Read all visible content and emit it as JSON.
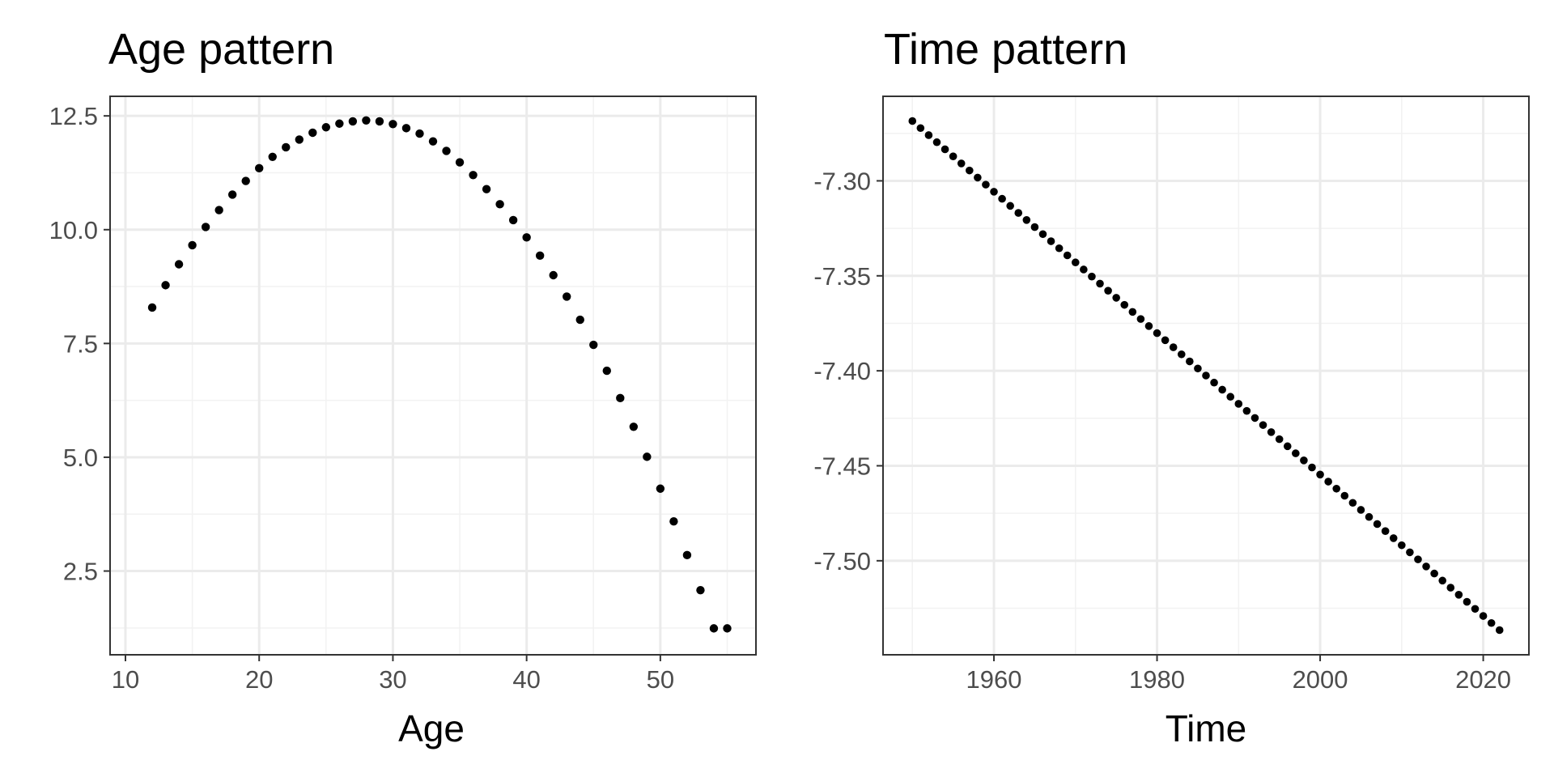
{
  "chart_data": [
    {
      "type": "scatter",
      "title": "Age pattern",
      "xlabel": "Age",
      "ylabel": "",
      "xlim": [
        8.85,
        57.15
      ],
      "ylim": [
        0.66,
        12.93
      ],
      "xticks": [
        10,
        20,
        30,
        40,
        50
      ],
      "xtick_labels": [
        "10",
        "20",
        "30",
        "40",
        "50"
      ],
      "yticks": [
        2.5,
        5.0,
        7.5,
        10.0,
        12.5
      ],
      "ytick_labels": [
        "2.5",
        "5.0",
        "7.5",
        "10.0",
        "12.5"
      ],
      "grid": true,
      "point_color": "#000000",
      "x": [
        12,
        13,
        14,
        15,
        16,
        17,
        18,
        19,
        20,
        21,
        22,
        23,
        24,
        25,
        26,
        27,
        28,
        29,
        30,
        31,
        32,
        33,
        34,
        35,
        36,
        37,
        38,
        39,
        40,
        41,
        42,
        43,
        44,
        45,
        46,
        47,
        48,
        49,
        50,
        51,
        52,
        53,
        54,
        55
      ],
      "y": [
        8.29,
        8.78,
        9.24,
        9.66,
        10.06,
        10.43,
        10.77,
        11.07,
        11.35,
        11.6,
        11.81,
        11.98,
        12.13,
        12.25,
        12.33,
        12.38,
        12.4,
        12.38,
        12.32,
        12.23,
        12.11,
        11.94,
        11.73,
        11.48,
        11.2,
        10.89,
        10.56,
        10.21,
        9.83,
        9.43,
        9.0,
        8.53,
        8.02,
        7.47,
        6.9,
        6.3,
        5.67,
        5.01,
        4.31,
        3.59,
        2.85,
        2.08,
        1.24,
        1.24
      ]
    },
    {
      "type": "scatter",
      "title": "Time pattern",
      "xlabel": "Time",
      "ylabel": "",
      "xlim": [
        1946.4,
        2025.6
      ],
      "ylim": [
        -7.5495,
        -7.2555
      ],
      "xticks": [
        1960,
        1980,
        2000,
        2020
      ],
      "xtick_labels": [
        "1960",
        "1980",
        "2000",
        "2020"
      ],
      "yticks": [
        -7.3,
        -7.35,
        -7.4,
        -7.45,
        -7.5
      ],
      "ytick_labels": [
        "-7.30",
        "-7.35",
        "-7.40",
        "-7.45",
        "-7.50"
      ],
      "grid": true,
      "point_color": "#000000",
      "x_start": 1950,
      "x_end": 2022,
      "y_start": -7.2685,
      "y_end": -7.5365
    }
  ]
}
